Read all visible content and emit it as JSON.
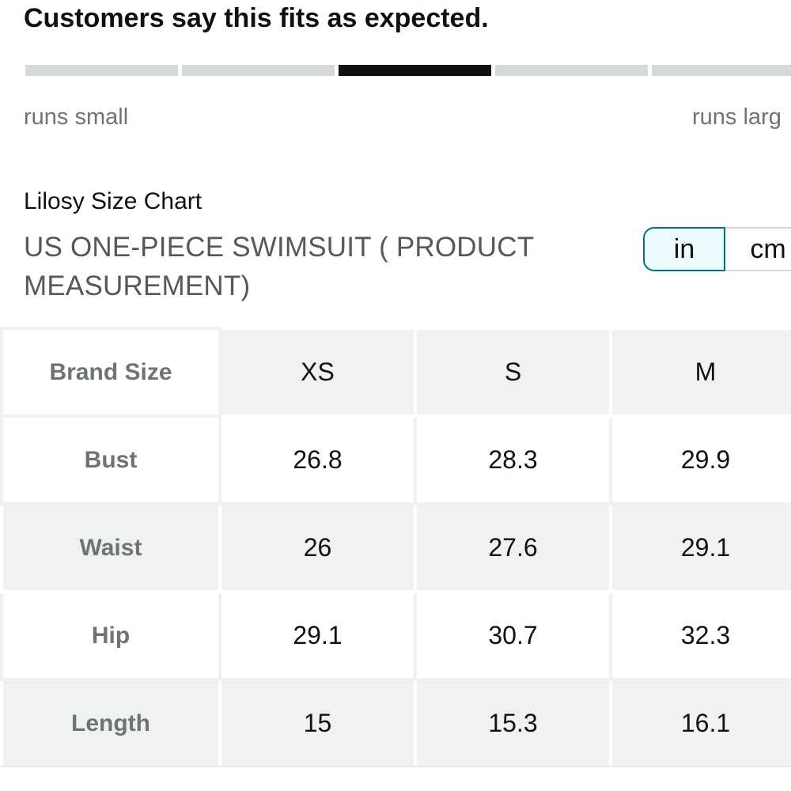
{
  "fit": {
    "title": "Customers say this fits as expected.",
    "segments": 5,
    "active_segment": 3,
    "scale_left": "runs small",
    "scale_right": "runs larg"
  },
  "size_chart": {
    "brand_title": "Lilosy Size Chart",
    "title": "US ONE-PIECE SWIMSUIT ( PRODUCT MEASUREMENT)",
    "units": {
      "in_label": "in",
      "cm_label": "cm",
      "selected": "in"
    },
    "header": [
      "Brand Size",
      "XS",
      "S",
      "M"
    ],
    "rows": [
      [
        "Bust",
        "26.8",
        "28.3",
        "29.9"
      ],
      [
        "Waist",
        "26",
        "27.6",
        "29.1"
      ],
      [
        "Hip",
        "29.1",
        "30.7",
        "32.3"
      ],
      [
        "Length",
        "15",
        "15.3",
        "16.1"
      ]
    ]
  },
  "colors": {
    "accent": "#007185",
    "selected_bg": "#edfdff",
    "meter_active": "#111111",
    "meter_inactive": "#d5d9d9",
    "table_grey": "#f0f2f2"
  }
}
